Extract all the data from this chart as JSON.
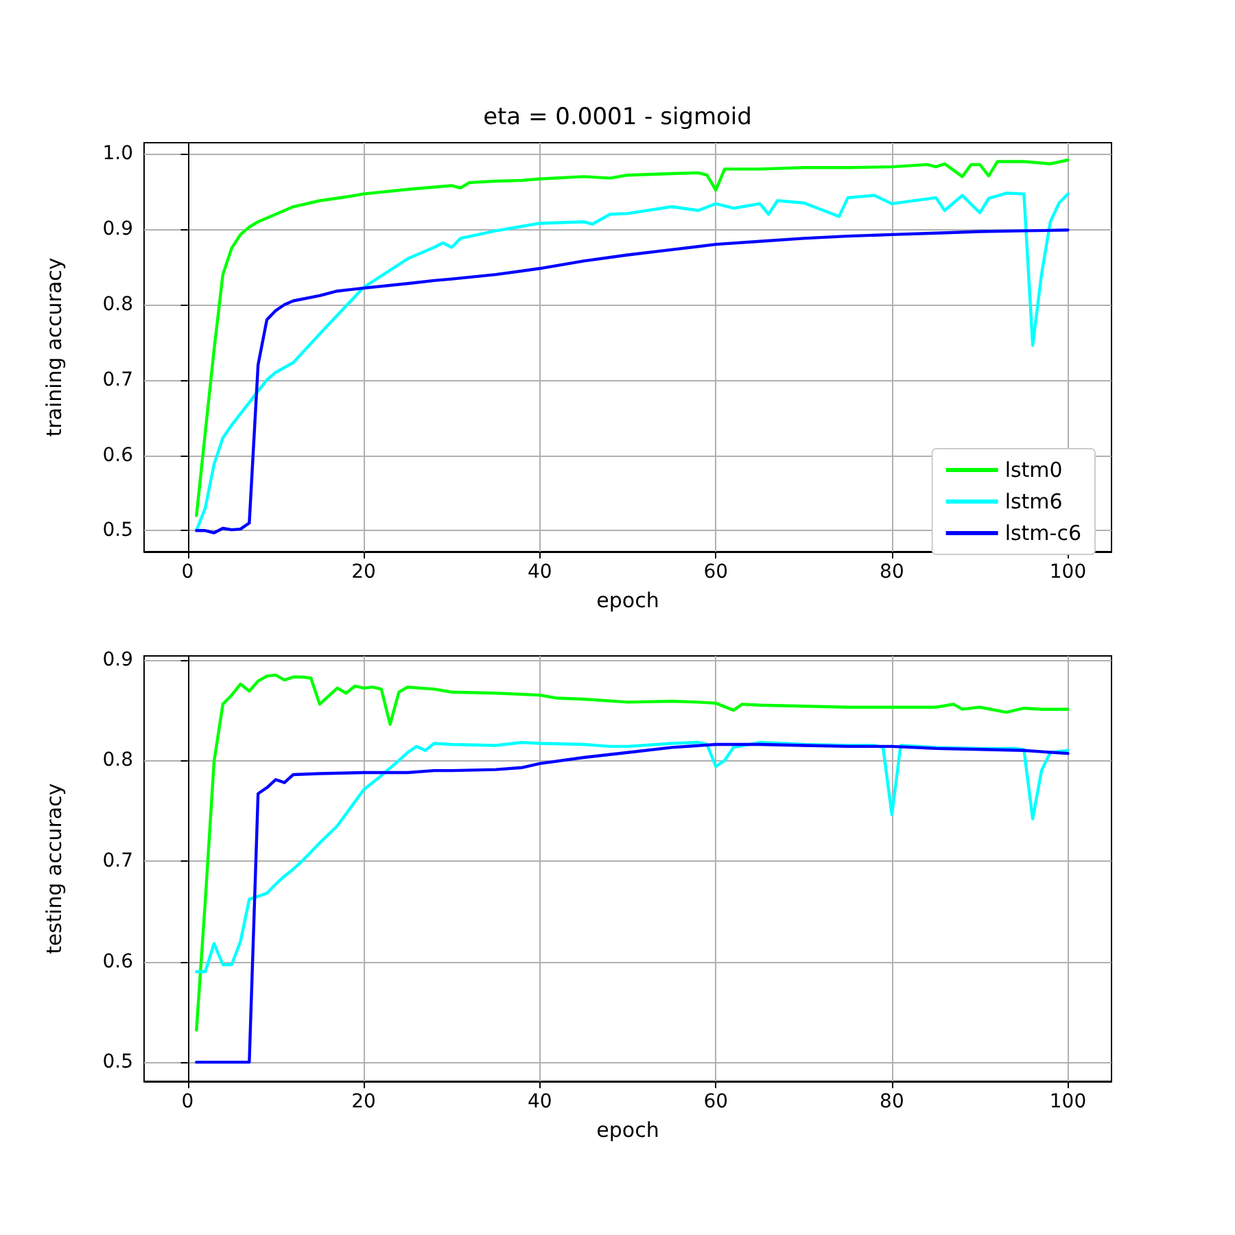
{
  "chart_data": [
    {
      "type": "line",
      "title": "eta = 0.0001 - sigmoid",
      "xlabel": "epoch",
      "ylabel": "training accuracy",
      "xlim": [
        -4.95,
        104.95
      ],
      "ylim": [
        0.472,
        1.015
      ],
      "xticks": [
        0,
        20,
        40,
        60,
        80,
        100
      ],
      "yticks": [
        0.5,
        0.6,
        0.7,
        0.8,
        0.9,
        {
          "value": 1.0,
          "label": "1.0"
        }
      ],
      "grid": true,
      "legend": "bottom right",
      "line_style": "solid",
      "marker": "none",
      "series": [
        {
          "name": "lstm0",
          "color": "#00ff00",
          "x": [
            1,
            2,
            3,
            4,
            5,
            6,
            7,
            8,
            10,
            12,
            15,
            18,
            20,
            25,
            30,
            31,
            32,
            35,
            38,
            40,
            45,
            48,
            50,
            55,
            58,
            59,
            60,
            61,
            65,
            70,
            75,
            80,
            84,
            85,
            86,
            88,
            89,
            90,
            91,
            92,
            95,
            98,
            100
          ],
          "values": [
            0.52,
            0.63,
            0.74,
            0.84,
            0.875,
            0.893,
            0.903,
            0.91,
            0.92,
            0.93,
            0.938,
            0.943,
            0.947,
            0.953,
            0.958,
            0.955,
            0.962,
            0.964,
            0.965,
            0.967,
            0.97,
            0.968,
            0.972,
            0.974,
            0.975,
            0.972,
            0.952,
            0.98,
            0.98,
            0.982,
            0.982,
            0.983,
            0.986,
            0.983,
            0.987,
            0.97,
            0.986,
            0.986,
            0.971,
            0.99,
            0.99,
            0.987,
            0.992
          ]
        },
        {
          "name": "lstm6",
          "color": "#00ffff",
          "x": [
            1,
            2,
            3,
            4,
            5,
            6,
            7,
            8,
            9,
            10,
            12,
            15,
            20,
            25,
            28,
            29,
            30,
            31,
            35,
            40,
            45,
            46,
            48,
            50,
            55,
            58,
            60,
            62,
            65,
            66,
            67,
            70,
            74,
            75,
            78,
            80,
            85,
            86,
            88,
            90,
            91,
            93,
            95,
            96,
            97,
            98,
            99,
            100
          ],
          "values": [
            0.5,
            0.53,
            0.588,
            0.623,
            0.64,
            0.655,
            0.67,
            0.685,
            0.7,
            0.71,
            0.723,
            0.761,
            0.823,
            0.861,
            0.876,
            0.882,
            0.876,
            0.888,
            0.898,
            0.908,
            0.91,
            0.907,
            0.92,
            0.921,
            0.93,
            0.925,
            0.934,
            0.928,
            0.934,
            0.92,
            0.938,
            0.935,
            0.917,
            0.942,
            0.945,
            0.934,
            0.942,
            0.925,
            0.945,
            0.922,
            0.941,
            0.948,
            0.947,
            0.746,
            0.84,
            0.91,
            0.935,
            0.947
          ]
        },
        {
          "name": "lstm-c6",
          "color": "#0000ff",
          "x": [
            1,
            2,
            3,
            4,
            5,
            6,
            7,
            8,
            9,
            10,
            11,
            12,
            15,
            17,
            20,
            25,
            28,
            30,
            35,
            40,
            45,
            50,
            55,
            60,
            65,
            70,
            75,
            80,
            85,
            90,
            95,
            100
          ],
          "values": [
            0.5,
            0.5,
            0.497,
            0.503,
            0.501,
            0.502,
            0.51,
            0.72,
            0.78,
            0.792,
            0.8,
            0.805,
            0.812,
            0.818,
            0.822,
            0.828,
            0.832,
            0.834,
            0.84,
            0.848,
            0.858,
            0.866,
            0.873,
            0.88,
            0.884,
            0.888,
            0.891,
            0.893,
            0.895,
            0.897,
            0.898,
            0.899
          ]
        }
      ]
    },
    {
      "type": "line",
      "xlabel": "epoch",
      "ylabel": "testing accuracy",
      "xlim": [
        -4.95,
        104.95
      ],
      "ylim": [
        0.481,
        0.904
      ],
      "xticks": [
        0,
        20,
        40,
        60,
        80,
        100
      ],
      "yticks": [
        0.5,
        0.6,
        0.7,
        0.8,
        0.9
      ],
      "grid": true,
      "line_style": "solid",
      "marker": "none",
      "series": [
        {
          "color": "#00ff00",
          "x": [
            1,
            2,
            3,
            4,
            5,
            6,
            7,
            8,
            9,
            10,
            11,
            12,
            13,
            14,
            15,
            16,
            17,
            18,
            19,
            20,
            21,
            22,
            23,
            24,
            25,
            28,
            30,
            35,
            40,
            42,
            45,
            50,
            55,
            58,
            60,
            62,
            63,
            65,
            70,
            75,
            80,
            85,
            87,
            88,
            90,
            93,
            95,
            97,
            100
          ],
          "values": [
            0.532,
            0.66,
            0.799,
            0.856,
            0.865,
            0.876,
            0.869,
            0.879,
            0.884,
            0.885,
            0.88,
            0.883,
            0.883,
            0.882,
            0.856,
            0.864,
            0.872,
            0.867,
            0.874,
            0.872,
            0.873,
            0.871,
            0.836,
            0.868,
            0.873,
            0.871,
            0.868,
            0.867,
            0.865,
            0.862,
            0.861,
            0.858,
            0.859,
            0.858,
            0.857,
            0.85,
            0.856,
            0.855,
            0.854,
            0.853,
            0.853,
            0.853,
            0.856,
            0.851,
            0.853,
            0.848,
            0.852,
            0.851,
            0.851
          ]
        },
        {
          "color": "#00ffff",
          "x": [
            1,
            2,
            3,
            4,
            5,
            6,
            7,
            8,
            9,
            10,
            11,
            12,
            13,
            15,
            17,
            20,
            22,
            24,
            25,
            26,
            27,
            28,
            30,
            35,
            38,
            40,
            45,
            48,
            50,
            55,
            58,
            59,
            60,
            61,
            62,
            65,
            70,
            75,
            78,
            79,
            80,
            81,
            85,
            90,
            94,
            95,
            96,
            97,
            98,
            100
          ],
          "values": [
            0.59,
            0.59,
            0.618,
            0.597,
            0.597,
            0.62,
            0.662,
            0.665,
            0.668,
            0.677,
            0.685,
            0.692,
            0.7,
            0.718,
            0.735,
            0.771,
            0.785,
            0.8,
            0.808,
            0.814,
            0.81,
            0.817,
            0.816,
            0.815,
            0.818,
            0.817,
            0.816,
            0.814,
            0.814,
            0.817,
            0.818,
            0.816,
            0.794,
            0.8,
            0.813,
            0.818,
            0.816,
            0.815,
            0.815,
            0.813,
            0.746,
            0.815,
            0.813,
            0.812,
            0.812,
            0.811,
            0.742,
            0.79,
            0.808,
            0.81
          ]
        },
        {
          "color": "#0000ff",
          "x": [
            1,
            2,
            3,
            4,
            5,
            6,
            7,
            8,
            9,
            10,
            11,
            12,
            15,
            20,
            25,
            28,
            30,
            35,
            38,
            40,
            45,
            50,
            55,
            60,
            65,
            70,
            75,
            80,
            85,
            90,
            95,
            100
          ],
          "values": [
            0.5,
            0.5,
            0.5,
            0.5,
            0.5,
            0.5,
            0.5,
            0.767,
            0.773,
            0.781,
            0.778,
            0.786,
            0.787,
            0.788,
            0.788,
            0.79,
            0.79,
            0.791,
            0.793,
            0.797,
            0.803,
            0.808,
            0.813,
            0.816,
            0.816,
            0.815,
            0.814,
            0.814,
            0.812,
            0.811,
            0.81,
            0.807
          ]
        }
      ]
    }
  ]
}
